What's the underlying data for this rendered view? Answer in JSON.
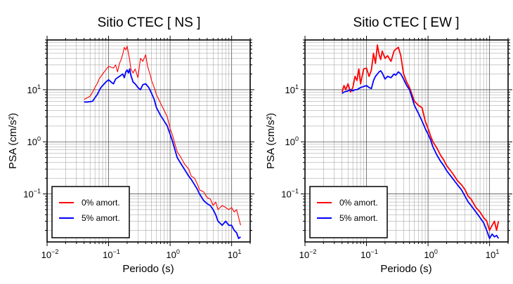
{
  "charts": [
    {
      "title": "Sitio CTEC [ NS ]"
    },
    {
      "title": "Sitio CTEC [ EW ]"
    }
  ],
  "chart_data": [
    {
      "type": "line",
      "title": "Sitio CTEC [ NS ]",
      "xlabel": "Periodo (s)",
      "ylabel": "PSA (cm/s²)",
      "xscale": "log",
      "yscale": "log",
      "xlim": [
        0.01,
        20
      ],
      "ylim": [
        0.012,
        90
      ],
      "xticks": [
        {
          "value": 0.01,
          "base": "10",
          "exp": "−2"
        },
        {
          "value": 0.1,
          "base": "10",
          "exp": "−1"
        },
        {
          "value": 1,
          "base": "10",
          "exp": "0"
        },
        {
          "value": 10,
          "base": "10",
          "exp": "1"
        }
      ],
      "yticks": [
        {
          "value": 0.1,
          "base": "10",
          "exp": "−1"
        },
        {
          "value": 1,
          "base": "10",
          "exp": "0"
        },
        {
          "value": 10,
          "base": "10",
          "exp": "1"
        }
      ],
      "grid": true,
      "legend_position": "bottom-left",
      "series": [
        {
          "name": "0% amort.",
          "color": "#ff0000",
          "x": [
            0.04,
            0.045,
            0.05,
            0.055,
            0.06,
            0.065,
            0.07,
            0.075,
            0.08,
            0.09,
            0.1,
            0.11,
            0.12,
            0.13,
            0.14,
            0.15,
            0.16,
            0.17,
            0.18,
            0.19,
            0.2,
            0.21,
            0.22,
            0.23,
            0.25,
            0.27,
            0.3,
            0.33,
            0.36,
            0.4,
            0.43,
            0.47,
            0.5,
            0.55,
            0.6,
            0.7,
            0.8,
            0.9,
            1.0,
            1.1,
            1.2,
            1.3,
            1.5,
            1.7,
            2.0,
            2.2,
            2.5,
            2.8,
            3.0,
            3.5,
            4.0,
            4.5,
            5.0,
            5.5,
            6.0,
            7.0,
            8.0,
            9.0,
            10.0,
            11.0,
            12.0,
            13.0,
            14.0
          ],
          "y": [
            6.5,
            7.0,
            7.5,
            9.0,
            11.0,
            13.0,
            16.0,
            18.0,
            20.0,
            24.0,
            28.0,
            27.0,
            26.0,
            30.0,
            22.0,
            32.0,
            38.0,
            48.0,
            65.0,
            58.0,
            68.0,
            50.0,
            38.0,
            25.0,
            21.0,
            25.0,
            17.0,
            40.0,
            35.0,
            47.0,
            28.0,
            20.0,
            15.0,
            11.0,
            8.0,
            5.5,
            4.0,
            3.0,
            1.8,
            1.3,
            0.9,
            0.65,
            0.5,
            0.38,
            0.3,
            0.22,
            0.2,
            0.15,
            0.12,
            0.11,
            0.085,
            0.08,
            0.06,
            0.07,
            0.05,
            0.06,
            0.055,
            0.05,
            0.055,
            0.045,
            0.05,
            0.035,
            0.025
          ]
        },
        {
          "name": "5% amort.",
          "color": "#0000ff",
          "x": [
            0.04,
            0.045,
            0.05,
            0.055,
            0.06,
            0.065,
            0.07,
            0.075,
            0.08,
            0.09,
            0.1,
            0.11,
            0.12,
            0.13,
            0.14,
            0.15,
            0.16,
            0.17,
            0.18,
            0.19,
            0.2,
            0.21,
            0.22,
            0.23,
            0.25,
            0.27,
            0.3,
            0.33,
            0.36,
            0.4,
            0.45,
            0.5,
            0.55,
            0.6,
            0.7,
            0.8,
            0.9,
            1.0,
            1.1,
            1.2,
            1.3,
            1.5,
            1.7,
            2.0,
            2.2,
            2.5,
            2.8,
            3.0,
            3.5,
            4.0,
            4.5,
            5.0,
            5.5,
            6.0,
            7.0,
            8.0,
            9.0,
            10.0,
            11.0,
            12.0,
            13.0,
            14.0
          ],
          "y": [
            5.8,
            5.8,
            5.9,
            6.0,
            7.0,
            8.0,
            9.5,
            11.0,
            12.0,
            14.0,
            15.5,
            14.0,
            13.0,
            16.0,
            17.0,
            18.0,
            19.0,
            20.0,
            17.0,
            22.0,
            24.0,
            21.0,
            25.0,
            19.0,
            14.0,
            13.0,
            11.0,
            10.0,
            12.5,
            13.0,
            11.0,
            8.5,
            6.5,
            4.5,
            3.2,
            2.5,
            2.0,
            1.4,
            1.0,
            0.7,
            0.5,
            0.38,
            0.3,
            0.22,
            0.19,
            0.15,
            0.12,
            0.1,
            0.075,
            0.065,
            0.06,
            0.05,
            0.04,
            0.03,
            0.025,
            0.03,
            0.025,
            0.025,
            0.02,
            0.018,
            0.014,
            0.015
          ]
        }
      ]
    },
    {
      "type": "line",
      "title": "Sitio CTEC [ EW ]",
      "xlabel": "Periodo (s)",
      "ylabel": "PSA (cm/s²)",
      "xscale": "log",
      "yscale": "log",
      "xlim": [
        0.01,
        20
      ],
      "ylim": [
        0.012,
        90
      ],
      "xticks": [
        {
          "value": 0.01,
          "base": "10",
          "exp": "−2"
        },
        {
          "value": 0.1,
          "base": "10",
          "exp": "−1"
        },
        {
          "value": 1,
          "base": "10",
          "exp": "0"
        },
        {
          "value": 10,
          "base": "10",
          "exp": "1"
        }
      ],
      "yticks": [
        {
          "value": 0.1,
          "base": "10",
          "exp": "−1"
        },
        {
          "value": 1,
          "base": "10",
          "exp": "0"
        },
        {
          "value": 10,
          "base": "10",
          "exp": "1"
        }
      ],
      "grid": true,
      "legend_position": "bottom-left",
      "series": [
        {
          "name": "0% amort.",
          "color": "#ff0000",
          "x": [
            0.04,
            0.043,
            0.046,
            0.05,
            0.055,
            0.06,
            0.065,
            0.07,
            0.075,
            0.08,
            0.09,
            0.1,
            0.11,
            0.12,
            0.13,
            0.14,
            0.15,
            0.16,
            0.17,
            0.18,
            0.2,
            0.22,
            0.25,
            0.28,
            0.3,
            0.33,
            0.36,
            0.4,
            0.45,
            0.5,
            0.55,
            0.6,
            0.7,
            0.8,
            0.9,
            1.0,
            1.1,
            1.2,
            1.4,
            1.6,
            1.8,
            2.0,
            2.5,
            3.0,
            3.5,
            4.0,
            4.5,
            5.0,
            6.0,
            7.0,
            8.0,
            9.0,
            10.0,
            11.0,
            12.0,
            13.0,
            14.0
          ],
          "y": [
            9.0,
            12.0,
            10.0,
            13.0,
            9.0,
            11.0,
            18.0,
            15.0,
            25.0,
            13.0,
            25.0,
            26.0,
            18.0,
            24.0,
            50.0,
            32.0,
            72.0,
            48.0,
            38.0,
            55.0,
            40.0,
            45.0,
            35.0,
            55.0,
            60.0,
            65.0,
            45.0,
            20.0,
            14.0,
            11.0,
            8.0,
            6.0,
            5.0,
            4.5,
            2.5,
            1.8,
            1.3,
            1.0,
            0.75,
            0.55,
            0.45,
            0.35,
            0.25,
            0.18,
            0.15,
            0.12,
            0.09,
            0.08,
            0.055,
            0.045,
            0.035,
            0.03,
            0.02,
            0.025,
            0.03,
            0.02,
            0.03
          ]
        },
        {
          "name": "5% amort.",
          "color": "#0000ff",
          "x": [
            0.04,
            0.043,
            0.046,
            0.05,
            0.055,
            0.06,
            0.065,
            0.07,
            0.075,
            0.08,
            0.09,
            0.1,
            0.11,
            0.12,
            0.13,
            0.14,
            0.15,
            0.16,
            0.17,
            0.18,
            0.2,
            0.22,
            0.25,
            0.28,
            0.3,
            0.33,
            0.36,
            0.4,
            0.45,
            0.5,
            0.55,
            0.6,
            0.7,
            0.8,
            0.9,
            1.0,
            1.1,
            1.2,
            1.4,
            1.6,
            1.8,
            2.0,
            2.5,
            3.0,
            3.5,
            4.0,
            4.5,
            5.0,
            6.0,
            7.0,
            8.0,
            9.0,
            10.0,
            11.0,
            12.0,
            13.0,
            14.0
          ],
          "y": [
            8.5,
            9.0,
            9.2,
            9.5,
            10.0,
            9.5,
            10.0,
            10.0,
            10.5,
            11.0,
            11.5,
            12.0,
            11.0,
            10.5,
            15.0,
            18.0,
            20.0,
            22.0,
            23.0,
            21.0,
            16.0,
            18.0,
            17.0,
            20.0,
            19.0,
            22.0,
            20.0,
            16.0,
            12.0,
            10.0,
            7.0,
            5.0,
            3.5,
            2.5,
            1.8,
            1.4,
            1.1,
            0.8,
            0.55,
            0.42,
            0.35,
            0.28,
            0.2,
            0.15,
            0.12,
            0.09,
            0.07,
            0.06,
            0.045,
            0.035,
            0.028,
            0.02,
            0.014,
            0.017,
            0.015,
            0.016,
            0.014
          ]
        }
      ]
    }
  ]
}
